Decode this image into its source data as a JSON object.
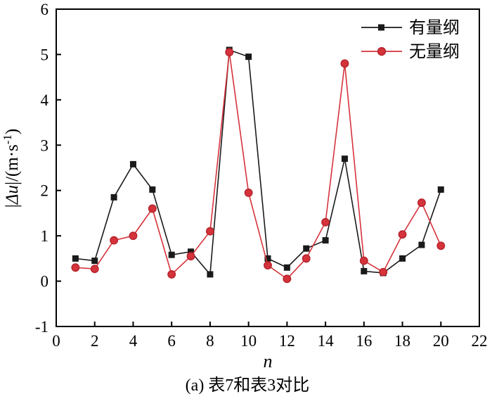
{
  "figure": {
    "caption": "(a) 表7和表3对比"
  },
  "ylabel_parts": {
    "open": "|",
    "sym": "Δu",
    "mid": "|/(m·s",
    "sup": "-1",
    "close": ")"
  },
  "chart_data": {
    "type": "line",
    "title": "",
    "xlabel": "n",
    "ylabel": "|Δu|/(m·s⁻¹)",
    "xlim": [
      0,
      22
    ],
    "ylim": [
      -1,
      6
    ],
    "x_ticks": [
      0,
      2,
      4,
      6,
      8,
      10,
      12,
      14,
      16,
      18,
      20,
      22
    ],
    "y_ticks": [
      -1,
      0,
      1,
      2,
      3,
      4,
      5,
      6
    ],
    "grid": false,
    "legend_position": "top-right",
    "caption": "(a) 表7和表3对比",
    "x": [
      1,
      2,
      3,
      4,
      5,
      6,
      7,
      8,
      9,
      10,
      11,
      12,
      13,
      14,
      15,
      16,
      17,
      18,
      19,
      20
    ],
    "series": [
      {
        "name": "有量纲",
        "marker": "square",
        "color": "#1a1a1a",
        "edge": "#1a1a1a",
        "values": [
          0.5,
          0.45,
          1.85,
          2.58,
          2.02,
          0.58,
          0.65,
          0.15,
          5.1,
          4.95,
          0.5,
          0.3,
          0.72,
          0.9,
          2.7,
          0.22,
          0.18,
          0.5,
          0.8,
          2.02
        ]
      },
      {
        "name": "无量纲",
        "marker": "circle",
        "color": "#d5333b",
        "edge": "#b6242c",
        "values": [
          0.3,
          0.27,
          0.9,
          1.0,
          1.6,
          0.15,
          0.55,
          1.1,
          5.05,
          1.95,
          0.35,
          0.05,
          0.5,
          1.3,
          4.8,
          0.45,
          0.2,
          1.03,
          1.73,
          0.78
        ]
      }
    ]
  }
}
